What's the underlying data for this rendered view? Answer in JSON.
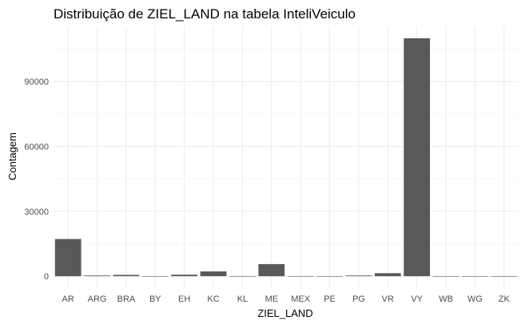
{
  "chart_data": {
    "type": "bar",
    "title": "Distribuição de ZIEL_LAND na tabela InteliVeiculo",
    "xlabel": "ZIEL_LAND",
    "ylabel": "Contagem",
    "categories": [
      "AR",
      "ARG",
      "BRA",
      "BY",
      "EH",
      "KC",
      "KL",
      "ME",
      "MEX",
      "PE",
      "PG",
      "VR",
      "VY",
      "WB",
      "WG",
      "ZK"
    ],
    "values": [
      17200,
      300,
      600,
      30,
      700,
      2200,
      40,
      5600,
      40,
      20,
      300,
      1400,
      110000,
      20,
      20,
      20
    ],
    "yticks": [
      0,
      30000,
      60000,
      90000
    ],
    "ylim": [
      -5500,
      115500
    ],
    "grid": true,
    "legend": "none",
    "bar_color": "#595959"
  }
}
